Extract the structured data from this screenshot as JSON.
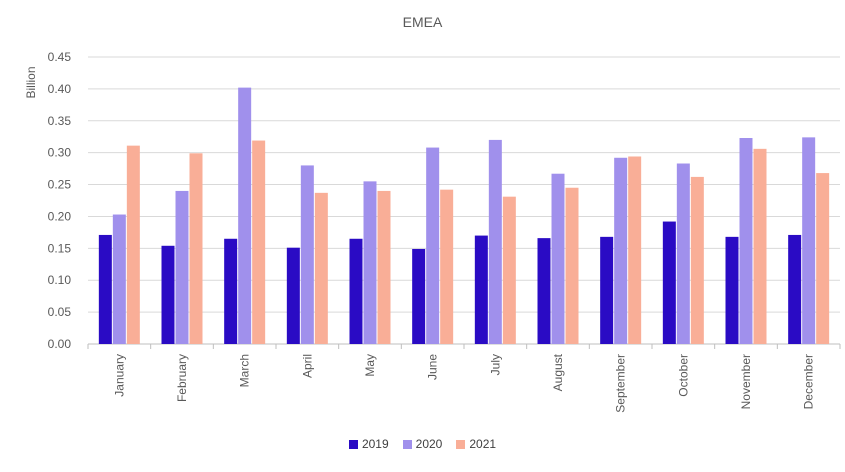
{
  "chart_data": {
    "type": "bar",
    "title": "EMEA",
    "xlabel": "",
    "ylabel": "Billion",
    "ylim": [
      0,
      0.45
    ],
    "yticks": [
      "0.00",
      "0.05",
      "0.10",
      "0.15",
      "0.20",
      "0.25",
      "0.30",
      "0.35",
      "0.40",
      "0.45"
    ],
    "categories": [
      "January",
      "February",
      "March",
      "April",
      "May",
      "June",
      "July",
      "August",
      "September",
      "October",
      "November",
      "December"
    ],
    "series": [
      {
        "name": "2019",
        "color": "#2a0bc4",
        "values": [
          0.171,
          0.154,
          0.165,
          0.151,
          0.165,
          0.149,
          0.17,
          0.166,
          0.168,
          0.192,
          0.168,
          0.171
        ]
      },
      {
        "name": "2020",
        "color": "#a090ec",
        "values": [
          0.203,
          0.24,
          0.402,
          0.28,
          0.255,
          0.308,
          0.32,
          0.267,
          0.292,
          0.283,
          0.323,
          0.324
        ]
      },
      {
        "name": "2021",
        "color": "#f9ae97",
        "values": [
          0.311,
          0.299,
          0.319,
          0.237,
          0.24,
          0.242,
          0.231,
          0.245,
          0.294,
          0.262,
          0.306,
          0.268
        ]
      }
    ],
    "grid": true,
    "legend_position": "bottom"
  }
}
